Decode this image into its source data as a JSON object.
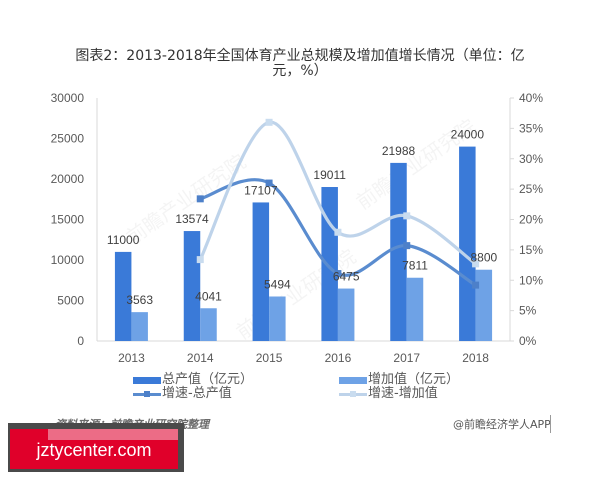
{
  "header": {
    "title_lines": [
      "图表2：2013-2018年全国体育产业总规模及增加值增长情况（单位：亿",
      "元，%）"
    ]
  },
  "chart_data": {
    "type": "bar",
    "title": "图表2：2013-2018年全国体育产业总规模及增加值增长情况（单位：亿元，%）",
    "xlabel": "",
    "ylabel": "",
    "categories": [
      "2013",
      "2014",
      "2015",
      "2016",
      "2017",
      "2018"
    ],
    "series": [
      {
        "name": "总产值（亿元）",
        "type": "bar",
        "axis": "left",
        "color": "#3a7ad8",
        "values": [
          11000,
          13574,
          17107,
          19011,
          21988,
          24000
        ],
        "data_labels": true
      },
      {
        "name": "增加值（亿元）",
        "type": "bar",
        "axis": "left",
        "color": "#6ea2e6",
        "values": [
          3563,
          4041,
          5494,
          6475,
          7811,
          8800
        ],
        "data_labels": true
      },
      {
        "name": "增速-总产值",
        "type": "line",
        "axis": "right",
        "unit": "%",
        "color": "#5a8ccf",
        "marker_color": "#4d80c9",
        "values": [
          null,
          23.4,
          26.0,
          11.1,
          15.7,
          9.2
        ],
        "smooth": true
      },
      {
        "name": "增速-增加值",
        "type": "line",
        "axis": "right",
        "unit": "%",
        "color": "#bed3ea",
        "marker_color": "#c9dcef",
        "values": [
          null,
          13.4,
          36.0,
          17.9,
          20.6,
          12.7
        ],
        "smooth": true
      }
    ],
    "y_left": {
      "ylim": [
        0,
        30000
      ],
      "ticks": [
        0,
        5000,
        10000,
        15000,
        20000,
        25000,
        30000
      ],
      "tick_labels": [
        "0",
        "5000",
        "10000",
        "15000",
        "20000",
        "25000",
        "30000"
      ]
    },
    "y_right": {
      "ylim": [
        0,
        40
      ],
      "ticks": [
        0,
        5,
        10,
        15,
        20,
        25,
        30,
        35,
        40
      ],
      "tick_labels": [
        "0%",
        "5%",
        "10%",
        "15%",
        "20%",
        "25%",
        "30%",
        "35%",
        "40%"
      ]
    },
    "grid": false,
    "legend": {
      "position": "bottom",
      "columns": 2
    }
  },
  "footer": {
    "source": "资料来源：前瞻产业研究院整理",
    "credit": "@前瞻经济学人APP"
  },
  "watermark": {
    "text": "前瞻产业研究院",
    "badge_text": "jztycenter.com"
  },
  "colors": {
    "axis_line": "#d9d9d9",
    "tick_label": "#595959",
    "data_label": "#404040",
    "badge_red": "#e0002a"
  }
}
